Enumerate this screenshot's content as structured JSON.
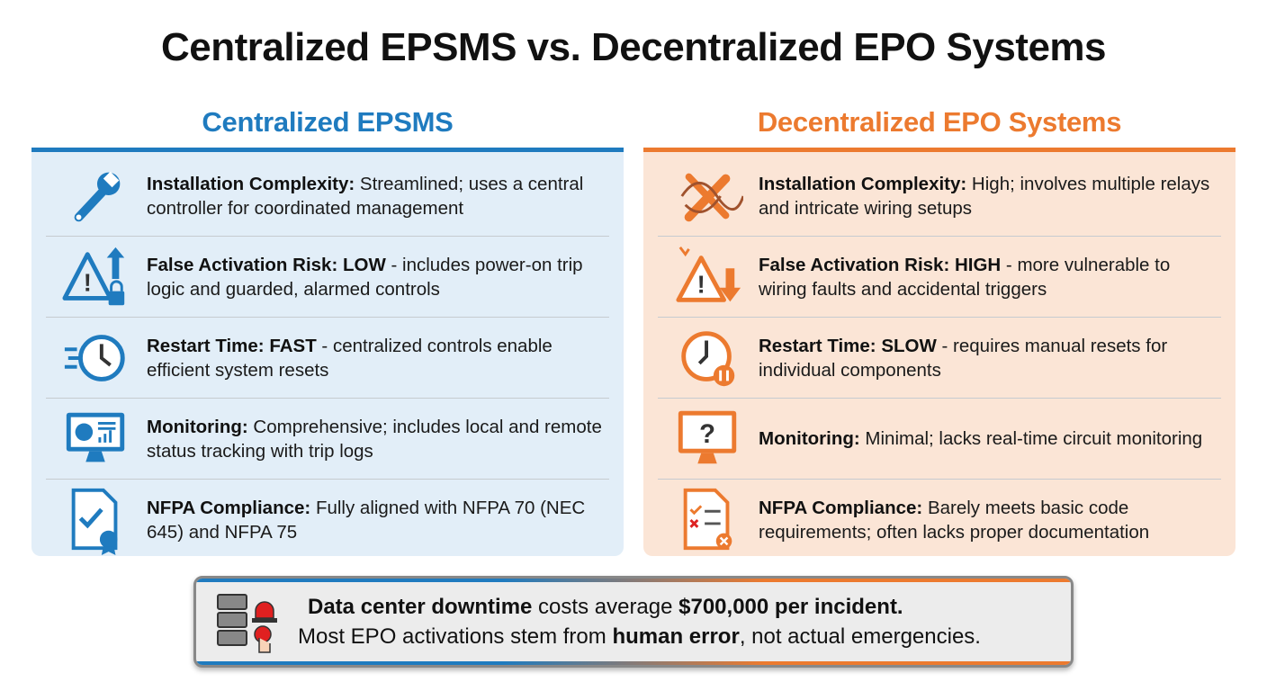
{
  "title": "Centralized EPSMS vs. Decentralized EPO Systems",
  "colors": {
    "blue": "#1f7bbf",
    "orange": "#ec7a2f"
  },
  "left": {
    "heading": "Centralized EPSMS",
    "items": [
      {
        "icon": "wrench-icon",
        "label": "Installation Complexity:",
        "text": " Streamlined; uses a central controller for coordinated management"
      },
      {
        "icon": "warning-lock-icon",
        "label": "False Activation Risk: LOW",
        "text": " - includes power-on trip logic and guarded, alarmed controls"
      },
      {
        "icon": "fast-clock-icon",
        "label": "Restart Time: FAST",
        "text": " - centralized controls enable efficient system resets"
      },
      {
        "icon": "dashboard-monitor-icon",
        "label": "Monitoring:",
        "text": " Comprehensive; includes local and remote status tracking with trip logs"
      },
      {
        "icon": "certified-document-icon",
        "label": "NFPA Compliance:",
        "text": " Fully aligned with NFPA 70 (NEC 645) and NFPA 75"
      }
    ]
  },
  "right": {
    "heading": "Decentralized EPO Systems",
    "items": [
      {
        "icon": "tangled-wrench-icon",
        "label": "Installation Complexity:",
        "text": " High; involves multiple relays and intricate wiring setups"
      },
      {
        "icon": "warning-down-icon",
        "label": "False Activation Risk: HIGH",
        "text": " - more vulnerable to wiring faults and accidental triggers"
      },
      {
        "icon": "slow-clock-icon",
        "label": "Restart Time: SLOW",
        "text": " - requires manual resets for individual components"
      },
      {
        "icon": "question-monitor-icon",
        "label": "Monitoring:",
        "text": " Minimal; lacks real-time circuit monitoring"
      },
      {
        "icon": "failed-checklist-icon",
        "label": "NFPA Compliance:",
        "text": " Barely meets basic code requirements; often lacks proper documentation"
      }
    ]
  },
  "note": {
    "l1": [
      "Data center downtime",
      " costs average ",
      "$700,000 per incident."
    ],
    "l2": [
      "Most EPO activations stem from ",
      "human error",
      ", not actual emergencies."
    ]
  }
}
